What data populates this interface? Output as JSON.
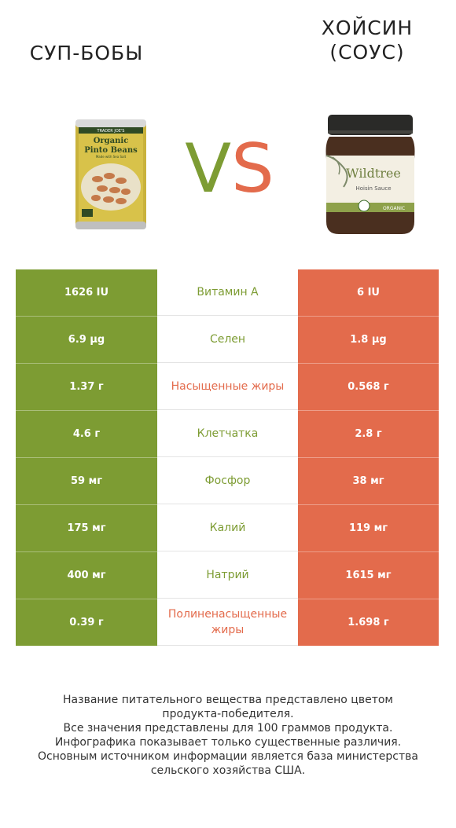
{
  "products": {
    "left": {
      "title_lines": [
        "СУП-БОБЫ"
      ],
      "color": "#7d9c33",
      "image": "pinto-beans-can"
    },
    "right": {
      "title_lines": [
        "ХОЙСИН",
        "(СОУС)"
      ],
      "color": "#e36b4c",
      "image": "hoisin-sauce-jar"
    }
  },
  "vs": {
    "v": "V",
    "s": "S"
  },
  "rows": [
    {
      "left": "1626 IU",
      "nutrient": "Витамин A",
      "right": "6 IU",
      "winner": "left"
    },
    {
      "left": "6.9 µg",
      "nutrient": "Селен",
      "right": "1.8 µg",
      "winner": "left"
    },
    {
      "left": "1.37 г",
      "nutrient": "Насыщенные жиры",
      "right": "0.568 г",
      "winner": "right"
    },
    {
      "left": "4.6 г",
      "nutrient": "Клетчатка",
      "right": "2.8 г",
      "winner": "left"
    },
    {
      "left": "59 мг",
      "nutrient": "Фосфор",
      "right": "38 мг",
      "winner": "left"
    },
    {
      "left": "175 мг",
      "nutrient": "Калий",
      "right": "119 мг",
      "winner": "left"
    },
    {
      "left": "400 мг",
      "nutrient": "Натрий",
      "right": "1615 мг",
      "winner": "left"
    },
    {
      "left": "0.39 г",
      "nutrient": "Полиненасыщенные жиры",
      "right": "1.698 г",
      "winner": "right"
    }
  ],
  "footer": [
    "Название питательного вещества представлено цветом",
    "продукта-победителя.",
    "Все значения представлены для 100 граммов продукта.",
    "Инфографика показывает только существенные различия.",
    "Основным источником информации является база министерства",
    "сельского хозяйства США."
  ],
  "can_label": {
    "brand": "TRADER JOE'S",
    "line1": "Organic",
    "line2": "Pinto Beans",
    "sub": "Made with Sea Salt"
  },
  "jar_label": {
    "brand": "Wildtree",
    "name": "Hoisin Sauce",
    "badge": "ORGANIC"
  }
}
